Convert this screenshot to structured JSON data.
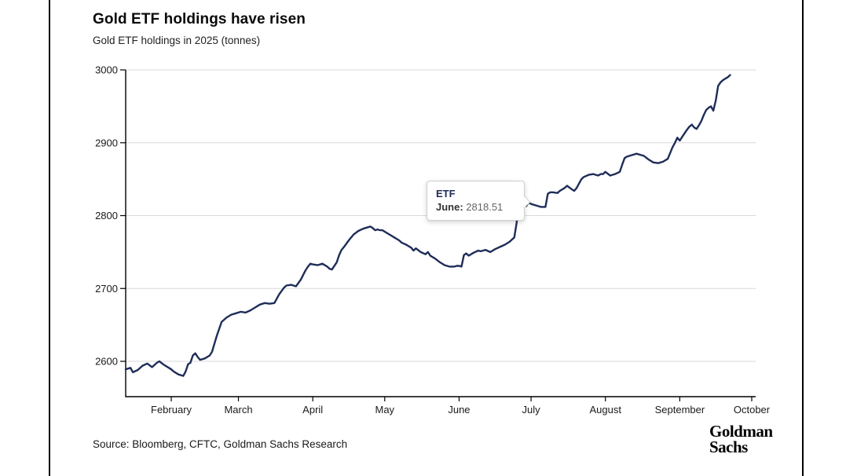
{
  "header": {
    "title": "Gold ETF holdings have risen",
    "subtitle": "Gold ETF holdings in 2025 (tonnes)"
  },
  "tooltip": {
    "series": "ETF",
    "label": "June:",
    "value": "2818.51"
  },
  "footer": {
    "source": "Source: Bloomberg, CFTC, Goldman Sachs Research",
    "logo_line1": "Goldman",
    "logo_line2": "Sachs"
  },
  "colors": {
    "line": "#1f2d58",
    "grid": "#d9d9d9",
    "axis": "#000000",
    "axis_text": "#1a1a1a"
  },
  "chart_data": {
    "type": "line",
    "title": "Gold ETF holdings have risen",
    "ylabel": "Gold ETF holdings in 2025 (tonnes)",
    "series_name": "ETF",
    "legend_position": "none",
    "grid": "horizontal",
    "y_ticks": [
      2600,
      2700,
      2800,
      2900,
      3000
    ],
    "ylim": [
      2551,
      3000
    ],
    "x_tick_labels": [
      "February",
      "March",
      "April",
      "May",
      "June",
      "July",
      "August",
      "September",
      "October"
    ],
    "x_tick_t": [
      19,
      47,
      78,
      108,
      139,
      169,
      200,
      231,
      261
    ],
    "t_unit": "days since series start (mid-January 2025)",
    "t_domain": [
      0,
      261
    ],
    "highlight": {
      "t": 164,
      "v": 2818.51,
      "label": "June"
    },
    "points": [
      [
        0,
        2589
      ],
      [
        2,
        2591
      ],
      [
        3,
        2585
      ],
      [
        5,
        2588
      ],
      [
        7,
        2594
      ],
      [
        9,
        2597
      ],
      [
        11,
        2592
      ],
      [
        13,
        2598
      ],
      [
        14,
        2600
      ],
      [
        16,
        2595
      ],
      [
        18,
        2591
      ],
      [
        19,
        2589
      ],
      [
        20,
        2586
      ],
      [
        21,
        2584
      ],
      [
        22,
        2582
      ],
      [
        23,
        2581
      ],
      [
        24,
        2580
      ],
      [
        25,
        2586
      ],
      [
        26,
        2596
      ],
      [
        27,
        2598
      ],
      [
        28,
        2608
      ],
      [
        29,
        2611
      ],
      [
        30,
        2606
      ],
      [
        31,
        2602
      ],
      [
        33,
        2604
      ],
      [
        35,
        2608
      ],
      [
        36,
        2613
      ],
      [
        38,
        2635
      ],
      [
        40,
        2654
      ],
      [
        42,
        2660
      ],
      [
        44,
        2664
      ],
      [
        46,
        2666
      ],
      [
        48,
        2668
      ],
      [
        50,
        2667
      ],
      [
        52,
        2670
      ],
      [
        54,
        2674
      ],
      [
        56,
        2678
      ],
      [
        58,
        2680
      ],
      [
        60,
        2679
      ],
      [
        62,
        2680
      ],
      [
        64,
        2692
      ],
      [
        66,
        2701
      ],
      [
        67,
        2704
      ],
      [
        69,
        2705
      ],
      [
        71,
        2703
      ],
      [
        73,
        2712
      ],
      [
        75,
        2725
      ],
      [
        76,
        2730
      ],
      [
        77,
        2734
      ],
      [
        78,
        2733
      ],
      [
        80,
        2732
      ],
      [
        82,
        2734
      ],
      [
        84,
        2730
      ],
      [
        85,
        2727
      ],
      [
        86,
        2726
      ],
      [
        88,
        2736
      ],
      [
        89,
        2746
      ],
      [
        90,
        2753
      ],
      [
        91,
        2757
      ],
      [
        93,
        2766
      ],
      [
        95,
        2774
      ],
      [
        97,
        2779
      ],
      [
        99,
        2782
      ],
      [
        101,
        2784
      ],
      [
        102,
        2785
      ],
      [
        103,
        2783
      ],
      [
        104,
        2780
      ],
      [
        105,
        2781
      ],
      [
        106,
        2780
      ],
      [
        107,
        2780
      ],
      [
        108,
        2778
      ],
      [
        110,
        2774
      ],
      [
        112,
        2770
      ],
      [
        114,
        2766
      ],
      [
        115,
        2763
      ],
      [
        117,
        2760
      ],
      [
        119,
        2756
      ],
      [
        120,
        2752
      ],
      [
        121,
        2755
      ],
      [
        123,
        2750
      ],
      [
        125,
        2747
      ],
      [
        126,
        2750
      ],
      [
        127,
        2745
      ],
      [
        129,
        2741
      ],
      [
        131,
        2736
      ],
      [
        133,
        2732
      ],
      [
        135,
        2730
      ],
      [
        137,
        2730
      ],
      [
        138,
        2731
      ],
      [
        139,
        2731
      ],
      [
        140,
        2730
      ],
      [
        141,
        2746
      ],
      [
        142,
        2748
      ],
      [
        143,
        2745
      ],
      [
        145,
        2749
      ],
      [
        147,
        2752
      ],
      [
        148,
        2751
      ],
      [
        150,
        2753
      ],
      [
        152,
        2750
      ],
      [
        154,
        2754
      ],
      [
        156,
        2757
      ],
      [
        158,
        2760
      ],
      [
        160,
        2764
      ],
      [
        161,
        2767
      ],
      [
        162,
        2770
      ],
      [
        163,
        2790
      ],
      [
        164,
        2818.51
      ],
      [
        165,
        2821
      ],
      [
        166,
        2815
      ],
      [
        167,
        2813
      ],
      [
        168,
        2818
      ],
      [
        169,
        2816
      ],
      [
        171,
        2814
      ],
      [
        173,
        2812
      ],
      [
        175,
        2812
      ],
      [
        176,
        2830
      ],
      [
        177,
        2832
      ],
      [
        178,
        2832
      ],
      [
        180,
        2831
      ],
      [
        181,
        2834
      ],
      [
        183,
        2838
      ],
      [
        184,
        2841
      ],
      [
        186,
        2836
      ],
      [
        187,
        2834
      ],
      [
        188,
        2838
      ],
      [
        189,
        2844
      ],
      [
        190,
        2850
      ],
      [
        191,
        2853
      ],
      [
        193,
        2856
      ],
      [
        195,
        2857
      ],
      [
        196,
        2856
      ],
      [
        197,
        2855
      ],
      [
        198,
        2857
      ],
      [
        199,
        2857
      ],
      [
        200,
        2860
      ],
      [
        202,
        2855
      ],
      [
        204,
        2857
      ],
      [
        206,
        2860
      ],
      [
        207,
        2870
      ],
      [
        208,
        2879
      ],
      [
        209,
        2881
      ],
      [
        211,
        2883
      ],
      [
        213,
        2885
      ],
      [
        215,
        2883
      ],
      [
        216,
        2882
      ],
      [
        218,
        2877
      ],
      [
        220,
        2873
      ],
      [
        222,
        2872
      ],
      [
        224,
        2874
      ],
      [
        226,
        2878
      ],
      [
        227,
        2886
      ],
      [
        228,
        2894
      ],
      [
        229,
        2900
      ],
      [
        230,
        2907
      ],
      [
        231,
        2903
      ],
      [
        232,
        2908
      ],
      [
        233,
        2913
      ],
      [
        234,
        2918
      ],
      [
        235,
        2922
      ],
      [
        236,
        2925
      ],
      [
        237,
        2921
      ],
      [
        238,
        2919
      ],
      [
        239,
        2924
      ],
      [
        240,
        2930
      ],
      [
        241,
        2938
      ],
      [
        242,
        2945
      ],
      [
        243,
        2948
      ],
      [
        244,
        2950
      ],
      [
        245,
        2944
      ],
      [
        246,
        2958
      ],
      [
        247,
        2978
      ],
      [
        248,
        2983
      ],
      [
        249,
        2986
      ],
      [
        250,
        2988
      ],
      [
        251,
        2990
      ],
      [
        252,
        2993
      ]
    ]
  }
}
